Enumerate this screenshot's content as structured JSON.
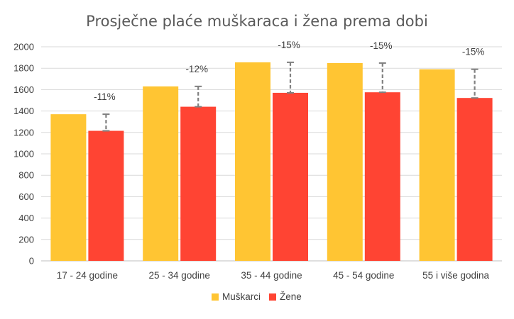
{
  "chart_data": {
    "type": "bar",
    "title": "Prosječne plaće muškaraca i žena prema dobi",
    "categories": [
      "17 - 24 godine",
      "25 - 34 godine",
      "35 - 44 godine",
      "45 - 54 godine",
      "55 i više godina"
    ],
    "series": [
      {
        "name": "Muškarci",
        "color": "#FFC533",
        "values": [
          1370,
          1630,
          1855,
          1848,
          1790
        ]
      },
      {
        "name": "Žene",
        "color": "#FF4433",
        "values": [
          1215,
          1440,
          1570,
          1575,
          1522
        ]
      }
    ],
    "gap_labels": [
      "-11%",
      "-12%",
      "-15%",
      "-15%",
      "-15%"
    ],
    "yticks": [
      "0",
      "200",
      "400",
      "600",
      "800",
      "1000",
      "1200",
      "1400",
      "1600",
      "1800",
      "2000"
    ],
    "ylim": [
      0,
      2000
    ],
    "grid": true,
    "legend": "bottom",
    "xlabel": "",
    "ylabel": ""
  }
}
